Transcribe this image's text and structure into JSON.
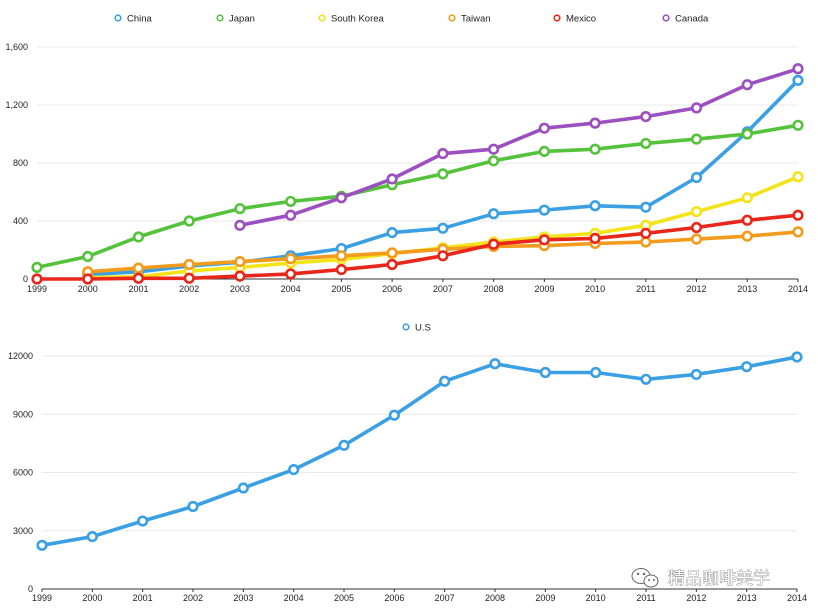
{
  "chart_data": [
    {
      "type": "line",
      "title": "",
      "xlabel": "",
      "ylabel": "",
      "x": [
        "1999",
        "2000",
        "2001",
        "2002",
        "2003",
        "2004",
        "2005",
        "2006",
        "2007",
        "2008",
        "2009",
        "2010",
        "2011",
        "2012",
        "2013",
        "2014"
      ],
      "ylim": [
        0,
        1600
      ],
      "yticks": [
        0,
        400,
        800,
        1200,
        1600
      ],
      "ytick_labels": [
        "0",
        "400",
        "800",
        "1,200",
        "1,600"
      ],
      "grid": true,
      "legend": "top",
      "series": [
        {
          "name": "China",
          "color": "#3a9fe3",
          "values": [
            null,
            30,
            50,
            90,
            115,
            160,
            210,
            320,
            350,
            450,
            475,
            505,
            495,
            700,
            1015,
            1370
          ]
        },
        {
          "name": "Japan",
          "color": "#54c23a",
          "values": [
            80,
            155,
            290,
            400,
            485,
            535,
            570,
            650,
            725,
            815,
            880,
            895,
            935,
            965,
            1000,
            1060
          ]
        },
        {
          "name": "South Korea",
          "color": "#f5e31a",
          "values": [
            null,
            10,
            15,
            55,
            80,
            110,
            135,
            175,
            215,
            255,
            290,
            315,
            370,
            465,
            560,
            705
          ]
        },
        {
          "name": "Taiwan",
          "color": "#f29b1d",
          "values": [
            null,
            50,
            75,
            100,
            120,
            140,
            160,
            180,
            205,
            225,
            230,
            245,
            255,
            275,
            295,
            325
          ]
        },
        {
          "name": "Mexico",
          "color": "#e8261a",
          "values": [
            0,
            0,
            5,
            5,
            20,
            35,
            65,
            100,
            160,
            240,
            270,
            280,
            315,
            355,
            405,
            440
          ]
        },
        {
          "name": "Canada",
          "color": "#9b4fc0",
          "values": [
            null,
            null,
            null,
            null,
            370,
            440,
            560,
            690,
            865,
            895,
            1040,
            1075,
            1120,
            1180,
            1340,
            1450
          ]
        }
      ]
    },
    {
      "type": "line",
      "title": "",
      "xlabel": "",
      "ylabel": "",
      "x": [
        "1999",
        "2000",
        "2001",
        "2002",
        "2003",
        "2004",
        "2005",
        "2006",
        "2007",
        "2008",
        "2009",
        "2010",
        "2011",
        "2012",
        "2013",
        "2014"
      ],
      "ylim": [
        0,
        12000
      ],
      "yticks": [
        0,
        3000,
        6000,
        9000,
        12000
      ],
      "ytick_labels": [
        "0",
        "3000",
        "6000",
        "9000",
        "12000"
      ],
      "grid": true,
      "legend": "top",
      "series": [
        {
          "name": "U.S",
          "color": "#3a9fe3",
          "values": [
            2250,
            2700,
            3500,
            4250,
            5200,
            6150,
            7400,
            8950,
            10700,
            11600,
            11150,
            11150,
            10800,
            11050,
            11450,
            11950
          ]
        }
      ]
    }
  ],
  "watermark": {
    "text": "精品咖啡美学",
    "icon": "wechat-icon"
  }
}
